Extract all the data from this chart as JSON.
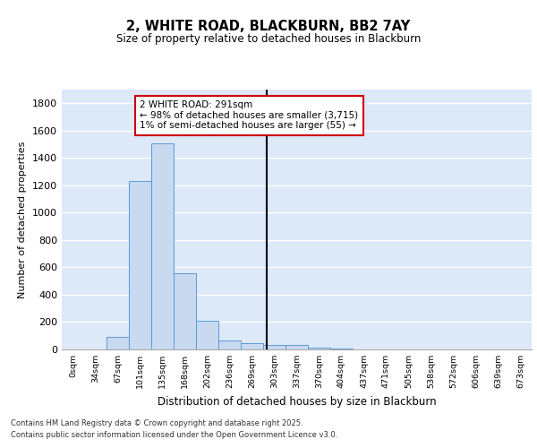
{
  "title": "2, WHITE ROAD, BLACKBURN, BB2 7AY",
  "subtitle": "Size of property relative to detached houses in Blackburn",
  "xlabel": "Distribution of detached houses by size in Blackburn",
  "ylabel": "Number of detached properties",
  "footer_line1": "Contains HM Land Registry data © Crown copyright and database right 2025.",
  "footer_line2": "Contains public sector information licensed under the Open Government Licence v3.0.",
  "bin_labels": [
    "0sqm",
    "34sqm",
    "67sqm",
    "101sqm",
    "135sqm",
    "168sqm",
    "202sqm",
    "236sqm",
    "269sqm",
    "303sqm",
    "337sqm",
    "370sqm",
    "404sqm",
    "437sqm",
    "471sqm",
    "505sqm",
    "538sqm",
    "572sqm",
    "606sqm",
    "639sqm",
    "673sqm"
  ],
  "bar_values": [
    0,
    0,
    90,
    1235,
    1510,
    560,
    210,
    65,
    45,
    35,
    30,
    15,
    8,
    2,
    0,
    0,
    0,
    0,
    0,
    0,
    0
  ],
  "bar_color": "#c9d9f0",
  "bar_edgecolor": "#5b9bd5",
  "background_color": "#dde8f8",
  "grid_color": "#ffffff",
  "vline_color": "#000000",
  "annotation_text": "2 WHITE ROAD: 291sqm\n← 98% of detached houses are smaller (3,715)\n1% of semi-detached houses are larger (55) →",
  "annotation_edgecolor": "#cc0000",
  "annotation_facecolor": "#ffffff",
  "ylim": [
    0,
    1900
  ],
  "yticks": [
    0,
    200,
    400,
    600,
    800,
    1000,
    1200,
    1400,
    1600,
    1800
  ]
}
